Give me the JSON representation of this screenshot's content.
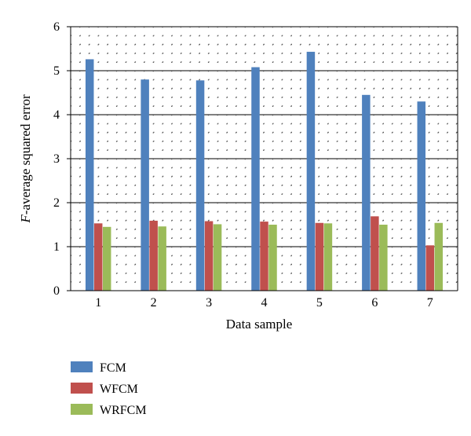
{
  "chart_data": {
    "type": "bar",
    "categories": [
      "1",
      "2",
      "3",
      "4",
      "5",
      "6",
      "7"
    ],
    "series": [
      {
        "name": "FCM",
        "color": "#4f81bd",
        "values": [
          5.26,
          4.8,
          4.78,
          5.08,
          5.43,
          4.45,
          4.3
        ]
      },
      {
        "name": "WFCM",
        "color": "#c0504d",
        "values": [
          1.53,
          1.59,
          1.58,
          1.57,
          1.54,
          1.69,
          1.03
        ]
      },
      {
        "name": "WRFCM",
        "color": "#9bbb59",
        "values": [
          1.45,
          1.46,
          1.51,
          1.5,
          1.53,
          1.5,
          1.54
        ]
      }
    ],
    "title": "",
    "xlabel": "Data sample",
    "ylabel_prefix": "F",
    "ylabel_rest": "-average squared error",
    "ylim": [
      0,
      6
    ],
    "yticks": [
      "0",
      "1",
      "2",
      "3",
      "4",
      "5",
      "6"
    ],
    "grid": "dotted",
    "legend_position": "bottom-left"
  }
}
